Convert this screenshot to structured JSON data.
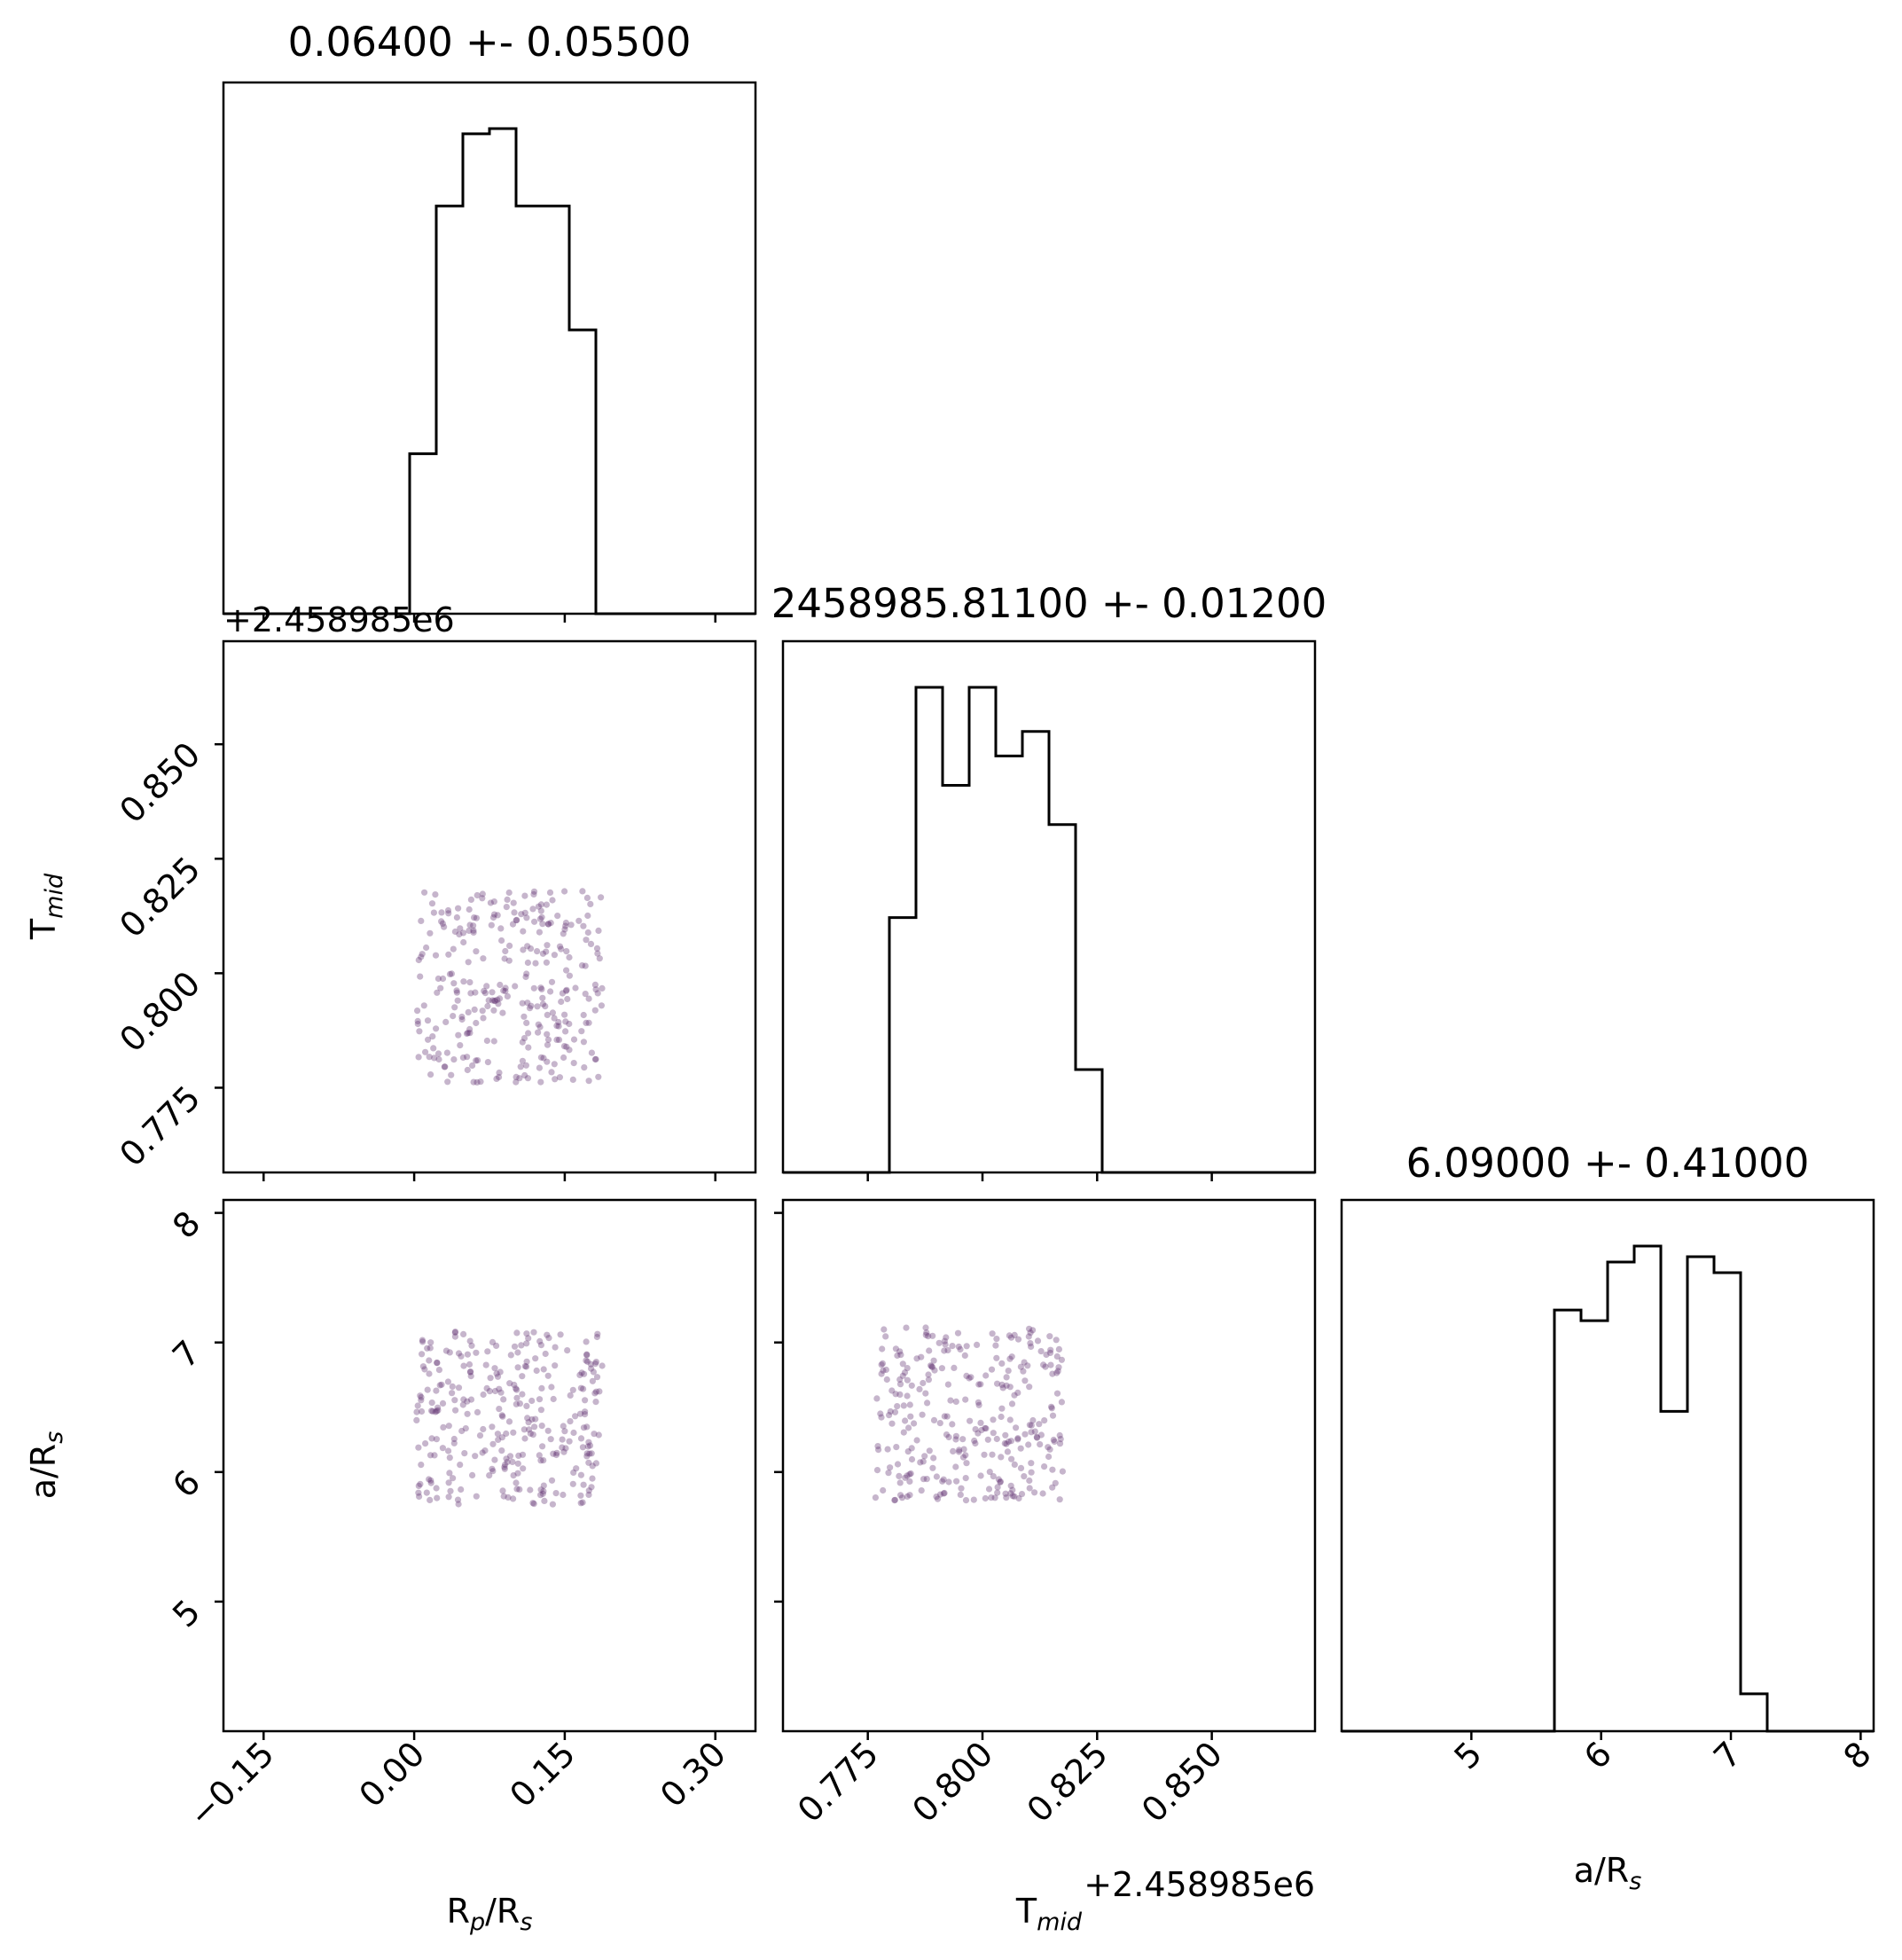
{
  "chart_data": {
    "type": "scatter",
    "subtype": "corner-plot",
    "parameters": [
      {
        "key": "rp",
        "label_main": "R",
        "label_sub": "p",
        "label_tail": "/R",
        "label_tail_sub": "s",
        "title": "0.06400 +- 0.05500",
        "range": [
          -0.19,
          0.34
        ],
        "ticks": [
          -0.15,
          0.0,
          0.15,
          0.3
        ],
        "tick_labels": [
          "−0.15",
          "0.00",
          "0.15",
          "0.30"
        ]
      },
      {
        "key": "tmid",
        "label_main": "T",
        "label_sub": "mid",
        "label_tail": "",
        "label_tail_sub": "",
        "title": "2458985.81100 +- 0.01200",
        "range": [
          0.7565,
          0.8725
        ],
        "ticks": [
          0.775,
          0.8,
          0.825,
          0.85
        ],
        "tick_labels": [
          "0.775",
          "0.800",
          "0.825",
          "0.850"
        ],
        "offset": "+2.458985e6"
      },
      {
        "key": "ars",
        "label_main": "a/R",
        "label_sub": "s",
        "label_tail": "",
        "label_tail_sub": "",
        "title": "6.09000 +- 0.41000",
        "range": [
          4.0,
          8.1
        ],
        "ticks": [
          5,
          6,
          7,
          8
        ],
        "tick_labels": [
          "5",
          "6",
          "7",
          "8"
        ]
      }
    ],
    "histograms": [
      {
        "param": "rp",
        "edges": [
          -0.19,
          -0.1635,
          -0.137,
          -0.1105,
          -0.084,
          -0.0575,
          -0.031,
          -0.0045,
          0.022,
          0.0485,
          0.075,
          0.1015,
          0.128,
          0.1545,
          0.181,
          0.2075,
          0.234,
          0.2605,
          0.287,
          0.3135,
          0.34
        ],
        "counts": [
          0,
          0,
          0,
          0,
          0,
          0,
          0,
          31,
          79,
          93,
          94,
          79,
          79,
          55,
          0,
          0,
          0,
          0,
          0,
          0
        ]
      },
      {
        "param": "tmid",
        "edges": [
          0.7565,
          0.7623,
          0.7681,
          0.7739,
          0.7797,
          0.7855,
          0.7913,
          0.7971,
          0.8029,
          0.8087,
          0.8145,
          0.8203,
          0.8261,
          0.8319,
          0.8377,
          0.8435,
          0.8493,
          0.8551,
          0.8609,
          0.8667,
          0.8725
        ],
        "counts": [
          0,
          0,
          0,
          0,
          52,
          99,
          79,
          99,
          85,
          90,
          71,
          21,
          0,
          0,
          0,
          0,
          0,
          0,
          0,
          0
        ]
      },
      {
        "param": "ars",
        "edges": [
          4.0,
          4.205,
          4.41,
          4.615,
          4.82,
          5.025,
          5.23,
          5.435,
          5.64,
          5.845,
          6.05,
          6.255,
          6.46,
          6.665,
          6.87,
          7.075,
          7.28,
          7.485,
          7.69,
          7.895,
          8.1
        ],
        "counts": [
          0,
          0,
          0,
          0,
          0,
          0,
          0,
          0,
          79,
          77,
          88,
          91,
          60,
          89,
          86,
          7,
          0,
          0,
          0,
          0
        ]
      }
    ],
    "scatter_pairs": [
      {
        "x": "rp",
        "y": "tmid",
        "x_uniform": [
          0.002,
          0.188
        ],
        "y_uniform": [
          0.776,
          0.818
        ],
        "n": 300
      },
      {
        "x": "rp",
        "y": "ars",
        "x_uniform": [
          0.002,
          0.188
        ],
        "y_uniform": [
          5.75,
          7.12
        ],
        "n": 300
      },
      {
        "x": "tmid",
        "y": "ars",
        "x_uniform": [
          0.7765,
          0.8175
        ],
        "y_uniform": [
          5.78,
          7.12
        ],
        "n": 300
      }
    ],
    "colors": {
      "hist": "#000000",
      "points": "#5b2a6e",
      "axes": "#000000"
    }
  }
}
